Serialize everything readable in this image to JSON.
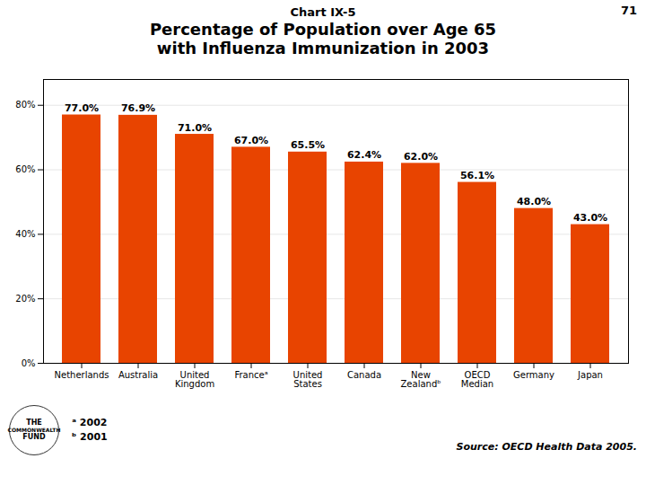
{
  "chart_data": {
    "type": "bar",
    "title": "Chart IX-5",
    "subtitle": "Percentage of Population over Age 65\nwith Influenza Immunization in 2003",
    "categories": [
      "Netherlands",
      "Australia",
      "United\nKingdom",
      "Franceᵃ",
      "United\nStates",
      "Canada",
      "New\nZealandᵇ",
      "OECD\nMedian",
      "Germany",
      "Japan"
    ],
    "values": [
      77.0,
      76.9,
      71.0,
      67.0,
      65.5,
      62.4,
      62.0,
      56.1,
      48.0,
      43.0
    ],
    "value_labels": [
      "77.0%",
      "76.9%",
      "71.0%",
      "67.0%",
      "65.5%",
      "62.4%",
      "62.0%",
      "56.1%",
      "48.0%",
      "43.0%"
    ],
    "data_labels": true,
    "color": "#E84400",
    "ylim": [
      0,
      88
    ],
    "yticks": [
      {
        "value": 0,
        "label": "0%"
      },
      {
        "value": 20,
        "label": "20%"
      },
      {
        "value": 40,
        "label": "40%"
      },
      {
        "value": 60,
        "label": "60%"
      },
      {
        "value": 80,
        "label": "80%"
      }
    ],
    "grid": true,
    "annotations": [
      "71",
      "ᵃ 2002",
      "ᵇ 2001",
      "Source: OECD Health Data 2005.",
      "THE",
      "COMMONWEALTH",
      "FUND"
    ]
  }
}
